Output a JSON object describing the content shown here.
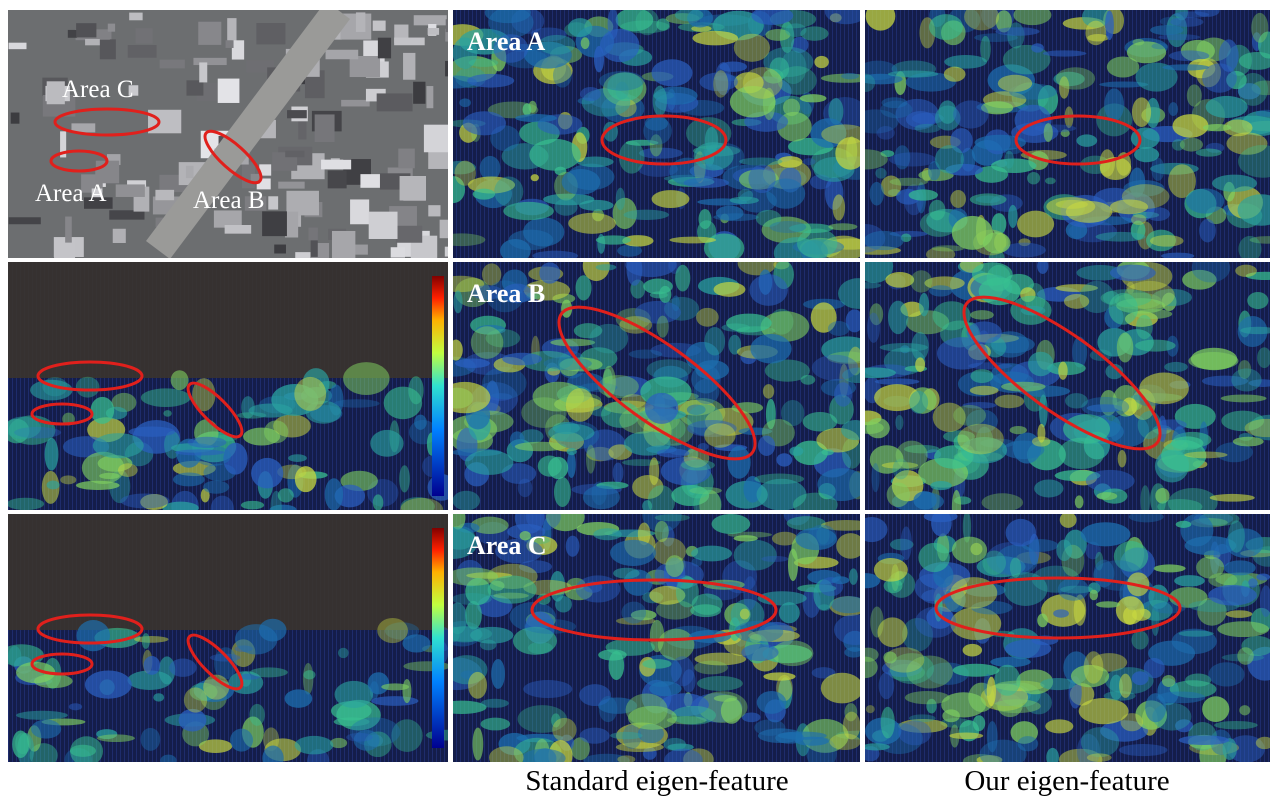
{
  "figure": {
    "overview": {
      "labels": [
        "Area C",
        "Area A",
        "Area B"
      ]
    },
    "rows": [
      {
        "label": "Area A"
      },
      {
        "label": "Area B"
      },
      {
        "label": "Area C"
      }
    ],
    "captions": [
      "Standard eigen-feature",
      "Our eigen-feature"
    ]
  }
}
